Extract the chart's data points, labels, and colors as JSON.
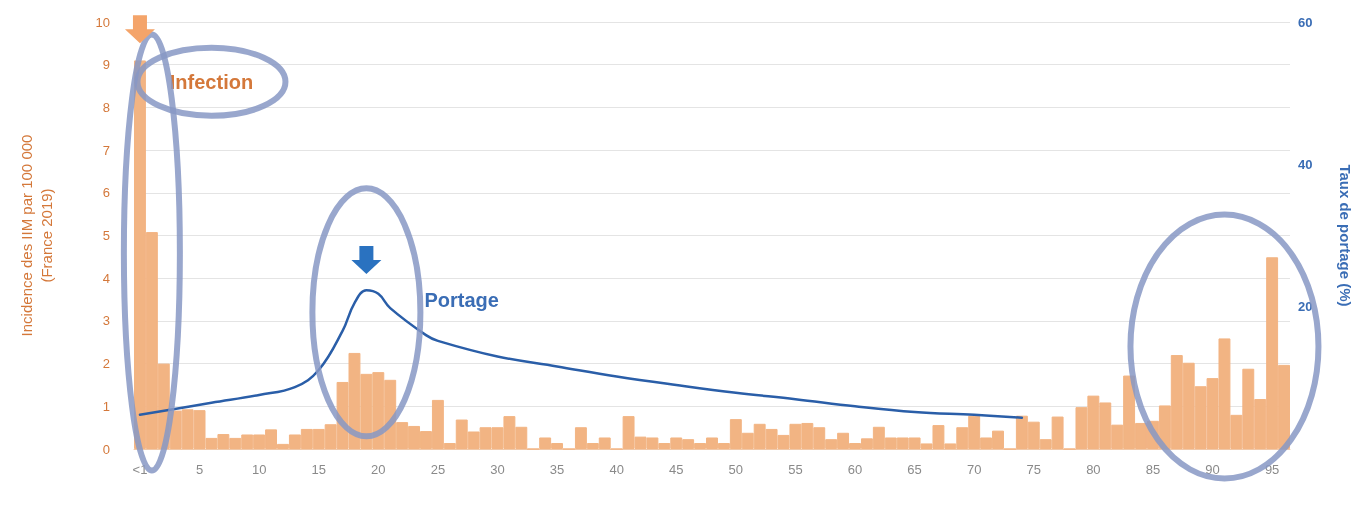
{
  "chart_data": {
    "type": "bar",
    "categories": [
      "<1",
      null,
      null,
      null,
      null,
      "5",
      null,
      null,
      null,
      null,
      "10",
      null,
      null,
      null,
      null,
      "15",
      null,
      null,
      null,
      null,
      "20",
      null,
      null,
      null,
      null,
      "25",
      null,
      null,
      null,
      null,
      "30",
      null,
      null,
      null,
      null,
      "35",
      null,
      null,
      null,
      null,
      "40",
      null,
      null,
      null,
      null,
      "45",
      null,
      null,
      null,
      null,
      "50",
      null,
      null,
      null,
      null,
      "55",
      null,
      null,
      null,
      null,
      "60",
      null,
      null,
      null,
      null,
      "65",
      null,
      null,
      null,
      null,
      "70",
      null,
      null,
      null,
      null,
      "75",
      null,
      null,
      null,
      null,
      "80",
      null,
      null,
      null,
      null,
      "85",
      null,
      null,
      null,
      null,
      "90",
      null,
      null,
      null,
      null,
      "95",
      null
    ],
    "series": [
      {
        "color": "#f2b483",
        "values": [
          9.1,
          5.08,
          2.0,
          0.9,
          0.93,
          0.91,
          0.26,
          0.35,
          0.26,
          0.34,
          0.34,
          0.46,
          0.12,
          0.34,
          0.47,
          0.47,
          0.58,
          1.57,
          2.25,
          1.76,
          1.8,
          1.62,
          0.63,
          0.54,
          0.42,
          1.15,
          0.14,
          0.69,
          0.41,
          0.51,
          0.51,
          0.77,
          0.52,
          0,
          0.27,
          0.14,
          0,
          0.51,
          0.14,
          0.27,
          0,
          0.77,
          0.29,
          0.27,
          0.14,
          0.27,
          0.23,
          0.14,
          0.27,
          0.14,
          0.7,
          0.38,
          0.59,
          0.47,
          0.33,
          0.59,
          0.61,
          0.51,
          0.23,
          0.38,
          0.14,
          0.25,
          0.52,
          0.27,
          0.27,
          0.27,
          0.13,
          0.56,
          0.13,
          0.51,
          0.78,
          0.27,
          0.43,
          0,
          0.78,
          0.64,
          0.23,
          0.76,
          0,
          0.98,
          1.25,
          1.09,
          0.57,
          1.72,
          0.61,
          0.66,
          1.02,
          2.2,
          2.02,
          1.47,
          1.66,
          2.59,
          0.8,
          1.88,
          1.17,
          4.49,
          1.97
        ]
      },
      {
        "type": "line",
        "axis": "y2",
        "color": "#2a5ea8",
        "values": [
          4.8,
          null,
          null,
          null,
          null,
          null,
          6.5,
          null,
          null,
          null,
          7.6,
          null,
          null,
          8.7,
          null,
          11.1,
          null,
          16.6,
          20.5,
          22.3,
          21.8,
          19.8,
          null,
          null,
          16.0,
          15.2,
          null,
          null,
          null,
          null,
          13.0,
          null,
          null,
          null,
          null,
          11.6,
          null,
          null,
          null,
          null,
          10.2,
          null,
          null,
          null,
          null,
          9.0,
          null,
          null,
          null,
          null,
          7.9,
          null,
          null,
          null,
          null,
          7.0,
          null,
          null,
          null,
          null,
          6.0,
          null,
          null,
          null,
          null,
          5.2,
          null,
          null,
          null,
          null,
          4.8,
          null,
          null,
          null,
          4.4,
          null,
          null,
          null,
          null,
          null,
          null,
          null,
          null,
          null,
          null,
          null,
          null,
          null,
          null,
          null,
          null,
          null,
          null,
          null,
          null,
          null,
          null
        ]
      }
    ],
    "ylabel": "Incidence des IIM par 100 000\n(France 2019)",
    "y2label": "Taux de portage (%)",
    "ylim": [
      0,
      10
    ],
    "yticks": [
      0,
      1,
      2,
      3,
      4,
      5,
      6,
      7,
      8,
      9,
      10
    ],
    "y2lim": [
      0,
      60
    ],
    "y2ticks": [
      20,
      40,
      60
    ],
    "grid": "y",
    "marker": "none",
    "line_style": "solid",
    "annotations": [
      "Infection",
      "Portage"
    ]
  }
}
